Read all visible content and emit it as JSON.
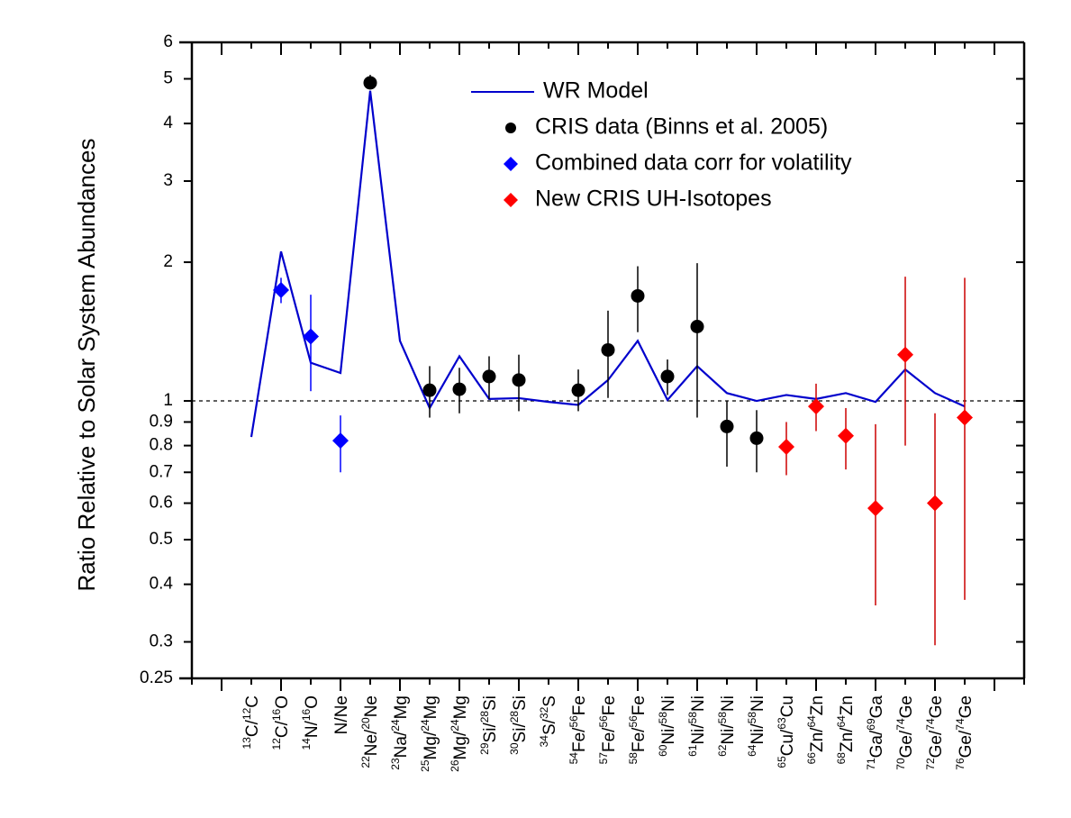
{
  "chart_data": {
    "type": "scatter",
    "title": "",
    "xlabel": "",
    "ylabel": "Ratio Relative to Solar System Abundances",
    "yscale": "log",
    "ylim": [
      0.25,
      6
    ],
    "yticks": [
      0.25,
      0.3,
      0.4,
      0.5,
      0.6,
      0.7,
      0.8,
      0.9,
      1,
      2,
      3,
      4,
      5,
      6
    ],
    "ytick_labels": [
      "0.25",
      "0.3",
      "0.4",
      "0.5",
      "0.6",
      "0.7",
      "0.8",
      "0.9",
      "1",
      "2",
      "3",
      "4",
      "5",
      "6"
    ],
    "reference_line": {
      "y": 1,
      "style": "dashed",
      "color": "#000000"
    },
    "grid": false,
    "legend_position": "top-center",
    "categories": [
      {
        "mass": "13",
        "num": "C",
        "mass2": "12",
        "den": "C"
      },
      {
        "mass": "12",
        "num": "C",
        "mass2": "16",
        "den": "O"
      },
      {
        "mass": "14",
        "num": "N",
        "mass2": "16",
        "den": "O"
      },
      {
        "mass": "",
        "num": "N",
        "mass2": "",
        "den": "Ne"
      },
      {
        "mass": "22",
        "num": "Ne",
        "mass2": "20",
        "den": "Ne"
      },
      {
        "mass": "23",
        "num": "Na",
        "mass2": "24",
        "den": "Mg"
      },
      {
        "mass": "25",
        "num": "Mg",
        "mass2": "24",
        "den": "Mg"
      },
      {
        "mass": "26",
        "num": "Mg",
        "mass2": "24",
        "den": "Mg"
      },
      {
        "mass": "29",
        "num": "Si",
        "mass2": "28",
        "den": "Si"
      },
      {
        "mass": "30",
        "num": "Si",
        "mass2": "28",
        "den": "Si"
      },
      {
        "mass": "34",
        "num": "S",
        "mass2": "32",
        "den": "S"
      },
      {
        "mass": "54",
        "num": "Fe",
        "mass2": "56",
        "den": "Fe"
      },
      {
        "mass": "57",
        "num": "Fe",
        "mass2": "56",
        "den": "Fe"
      },
      {
        "mass": "58",
        "num": "Fe",
        "mass2": "56",
        "den": "Fe"
      },
      {
        "mass": "60",
        "num": "Ni",
        "mass2": "58",
        "den": "Ni"
      },
      {
        "mass": "61",
        "num": "Ni",
        "mass2": "58",
        "den": "Ni"
      },
      {
        "mass": "62",
        "num": "Ni",
        "mass2": "58",
        "den": "Ni"
      },
      {
        "mass": "64",
        "num": "Ni",
        "mass2": "58",
        "den": "Ni"
      },
      {
        "mass": "65",
        "num": "Cu",
        "mass2": "63",
        "den": "Cu"
      },
      {
        "mass": "66",
        "num": "Zn",
        "mass2": "64",
        "den": "Zn"
      },
      {
        "mass": "68",
        "num": "Zn",
        "mass2": "64",
        "den": "Zn"
      },
      {
        "mass": "71",
        "num": "Ga",
        "mass2": "69",
        "den": "Ga"
      },
      {
        "mass": "70",
        "num": "Ge",
        "mass2": "74",
        "den": "Ge"
      },
      {
        "mass": "72",
        "num": "Ge",
        "mass2": "74",
        "den": "Ge"
      },
      {
        "mass": "76",
        "num": "Ge",
        "mass2": "74",
        "den": "Ge"
      }
    ],
    "series": [
      {
        "name": "WR Model",
        "type": "line",
        "color": "#0000cc",
        "values": [
          0.835,
          2.11,
          1.21,
          1.15,
          4.71,
          1.35,
          0.965,
          1.25,
          1.01,
          1.014,
          0.995,
          0.98,
          1.11,
          1.35,
          1.005,
          1.19,
          1.04,
          1.0,
          1.03,
          1.01,
          1.04,
          0.995,
          1.17,
          1.04,
          0.973
        ]
      },
      {
        "name": "CRIS data (Binns et al. 2005)",
        "type": "scatter",
        "marker": "circle",
        "color": "#000000",
        "points": [
          {
            "cat": 4,
            "y": 4.9,
            "lo": 4.75,
            "hi": 5.1
          },
          {
            "cat": 6,
            "y": 1.055,
            "lo": 0.92,
            "hi": 1.19
          },
          {
            "cat": 7,
            "y": 1.06,
            "lo": 0.94,
            "hi": 1.18
          },
          {
            "cat": 8,
            "y": 1.13,
            "lo": 1.01,
            "hi": 1.25
          },
          {
            "cat": 9,
            "y": 1.11,
            "lo": 0.95,
            "hi": 1.26
          },
          {
            "cat": 11,
            "y": 1.055,
            "lo": 0.95,
            "hi": 1.17
          },
          {
            "cat": 12,
            "y": 1.29,
            "lo": 1.015,
            "hi": 1.57
          },
          {
            "cat": 13,
            "y": 1.69,
            "lo": 1.41,
            "hi": 1.96
          },
          {
            "cat": 14,
            "y": 1.13,
            "lo": 1.03,
            "hi": 1.23
          },
          {
            "cat": 15,
            "y": 1.45,
            "lo": 0.92,
            "hi": 1.99
          },
          {
            "cat": 16,
            "y": 0.88,
            "lo": 0.72,
            "hi": 1.0
          },
          {
            "cat": 17,
            "y": 0.83,
            "lo": 0.7,
            "hi": 0.955
          }
        ]
      },
      {
        "name": "Combined data corr for volatility",
        "type": "scatter",
        "marker": "diamond",
        "color": "#0000ff",
        "points": [
          {
            "cat": 1,
            "y": 1.74,
            "lo": 1.63,
            "hi": 1.85
          },
          {
            "cat": 2,
            "y": 1.38,
            "lo": 1.05,
            "hi": 1.7
          },
          {
            "cat": 3,
            "y": 0.82,
            "lo": 0.7,
            "hi": 0.93
          }
        ]
      },
      {
        "name": "New CRIS UH-Isotopes",
        "type": "scatter",
        "marker": "diamond",
        "color": "#ff0000",
        "errcolor": "#cc0000",
        "points": [
          {
            "cat": 18,
            "y": 0.795,
            "lo": 0.69,
            "hi": 0.9
          },
          {
            "cat": 19,
            "y": 0.973,
            "lo": 0.86,
            "hi": 1.09
          },
          {
            "cat": 20,
            "y": 0.84,
            "lo": 0.71,
            "hi": 0.965
          },
          {
            "cat": 21,
            "y": 0.585,
            "lo": 0.36,
            "hi": 0.89
          },
          {
            "cat": 22,
            "y": 1.26,
            "lo": 0.8,
            "hi": 1.86
          },
          {
            "cat": 23,
            "y": 0.6,
            "lo": 0.295,
            "hi": 0.94
          },
          {
            "cat": 24,
            "y": 0.92,
            "lo": 0.37,
            "hi": 1.85
          }
        ]
      }
    ],
    "legend": [
      {
        "label": "WR Model",
        "symbol": "line",
        "color": "#0000cc"
      },
      {
        "label": " CRIS data (Binns et al. 2005)",
        "symbol": "circle",
        "color": "#000000"
      },
      {
        "label": "Combined data corr for volatility",
        "symbol": "diamond",
        "color": "#0000ff"
      },
      {
        "label": " New CRIS UH-Isotopes",
        "symbol": "diamond",
        "color": "#ff0000"
      }
    ]
  }
}
